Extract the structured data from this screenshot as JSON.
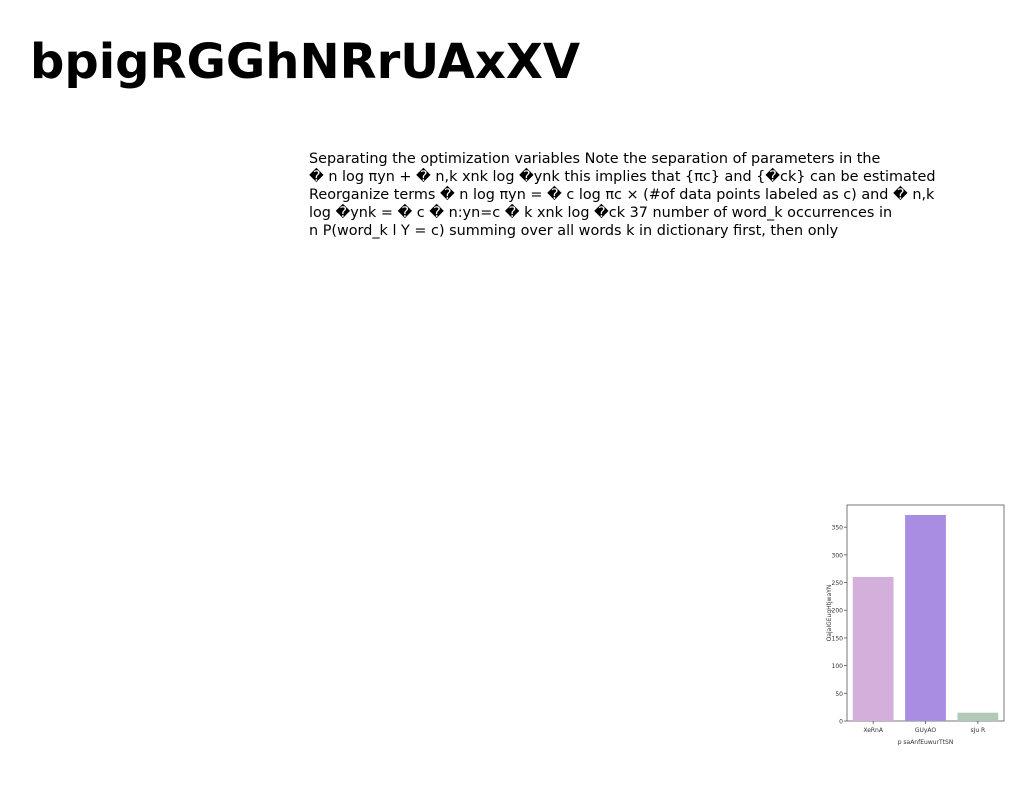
{
  "title": "bpigRGGhNRrUAxXV",
  "body_lines": [
    "Separating the optimization variables Note the separation of parameters in the",
    "� n log πyn + � n,k xnk log �ynk this implies that {πc} and {�ck} can be estimated",
    "Reorganize terms � n log πyn = � c log πc × (#of data points labeled as c) and � n,k",
    "log �ynk = � c � n:yn=c � k xnk log �ck 37 number of word_k occurrences in",
    "n P(word_k l Y = c) summing over all words k in dictionary first, then only"
  ],
  "chart_data": {
    "type": "bar",
    "categories": [
      "XeRnA",
      "GUyAO",
      "sJu R"
    ],
    "values": [
      260,
      372,
      15
    ],
    "colors": [
      "#d5afdc",
      "#a98de3",
      "#b3c9b8"
    ],
    "xlabel": "p saAnfEuwurTtSN",
    "ylabel": "OajaIGEuqHtjwaYN",
    "ylim": [
      0,
      390
    ],
    "yticks": [
      0,
      50,
      100,
      150,
      200,
      250,
      300,
      350
    ],
    "grid": false
  }
}
